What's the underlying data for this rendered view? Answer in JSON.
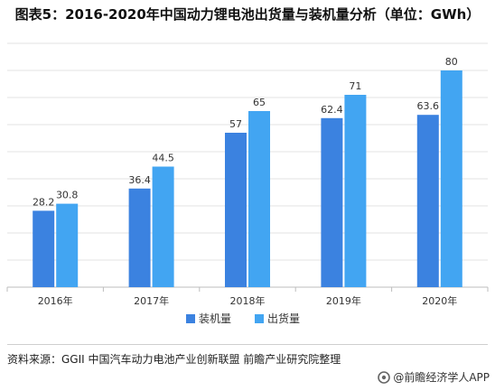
{
  "title": "图表5：2016-2020年中国动力锂电池出货量与装机量分析（单位：GWh）",
  "source_text": "资料来源：GGII 中国汽车动力电池产业创新联盟 前瞻产业研究院整理",
  "brand_text": "@前瞻经济学人APP",
  "colors": {
    "install": "#3b82e0",
    "ship": "#42a5f2",
    "grid": "#e3e3e3",
    "axis": "#bdbdbd"
  },
  "chart_data": {
    "type": "bar",
    "title": "图表5：2016-2020年中国动力锂电池出货量与装机量分析（单位：GWh）",
    "categories": [
      "2016年",
      "2017年",
      "2018年",
      "2019年",
      "2020年"
    ],
    "series": [
      {
        "name": "装机量",
        "values": [
          28.2,
          36.4,
          57,
          62.4,
          63.6
        ],
        "labels": [
          "28.2",
          "36.4",
          "57",
          "62.4",
          "63.6"
        ]
      },
      {
        "name": "出货量",
        "values": [
          30.8,
          44.5,
          65,
          71,
          80
        ],
        "labels": [
          "30.8",
          "44.5",
          "65",
          "71",
          "80"
        ]
      }
    ],
    "ylim": [
      0,
      90
    ],
    "grid": true,
    "y_tick_labels_shown": false,
    "legend_position": "bottom-center"
  }
}
